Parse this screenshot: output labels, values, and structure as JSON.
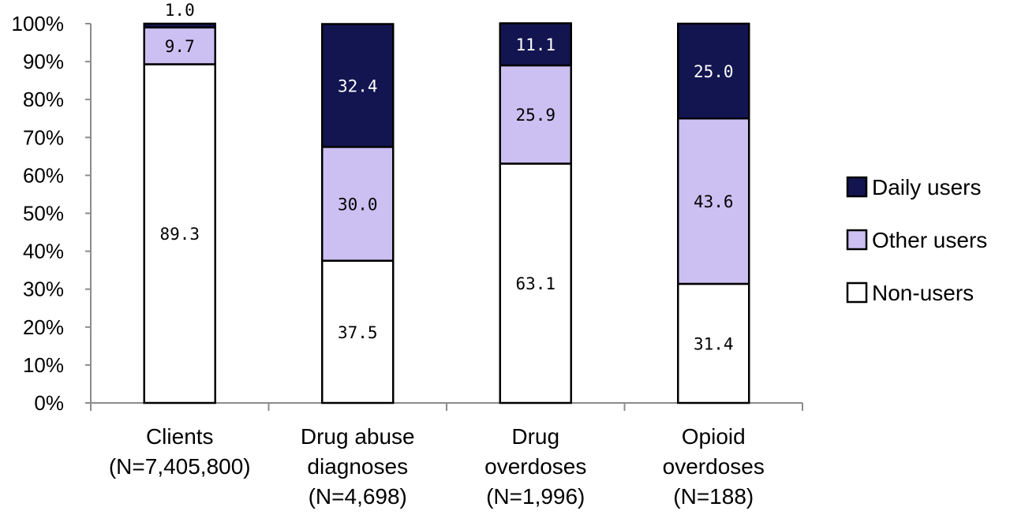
{
  "chart_data": {
    "type": "bar",
    "stacked": true,
    "percent_stacked": true,
    "categories": [
      [
        "Clients",
        "(N=7,405,800)"
      ],
      [
        "Drug abuse",
        "diagnoses",
        "(N=4,698)"
      ],
      [
        "Drug",
        "overdoses",
        "(N=1,996)"
      ],
      [
        "Opioid",
        "overdoses",
        "(N=188)"
      ]
    ],
    "series": [
      {
        "name": "Non-users",
        "values": [
          89.3,
          37.5,
          63.1,
          31.4
        ],
        "color": "#ffffff",
        "label_color": "#000000"
      },
      {
        "name": "Other users",
        "values": [
          9.7,
          30.0,
          25.9,
          43.6
        ],
        "color": "#ccc0f2",
        "label_color": "#000000"
      },
      {
        "name": "Daily users",
        "values": [
          1.0,
          32.4,
          11.1,
          25.0
        ],
        "color": "#121550",
        "label_color": "#ffffff"
      }
    ],
    "data_labels": [
      [
        "89.3",
        "37.5",
        "63.1",
        "31.4"
      ],
      [
        "9.7",
        "30.0",
        "25.9",
        "43.6"
      ],
      [
        "1.0",
        "32.4",
        "11.1",
        "25.0"
      ]
    ],
    "y_ticks": [
      "0%",
      "10%",
      "20%",
      "30%",
      "40%",
      "50%",
      "60%",
      "70%",
      "80%",
      "90%",
      "100%"
    ],
    "ylim": [
      0,
      100
    ],
    "grid": false,
    "legend_position": "right",
    "legend_order": [
      "Daily users",
      "Other users",
      "Non-users"
    ],
    "title": "",
    "xlabel": "",
    "ylabel": ""
  }
}
